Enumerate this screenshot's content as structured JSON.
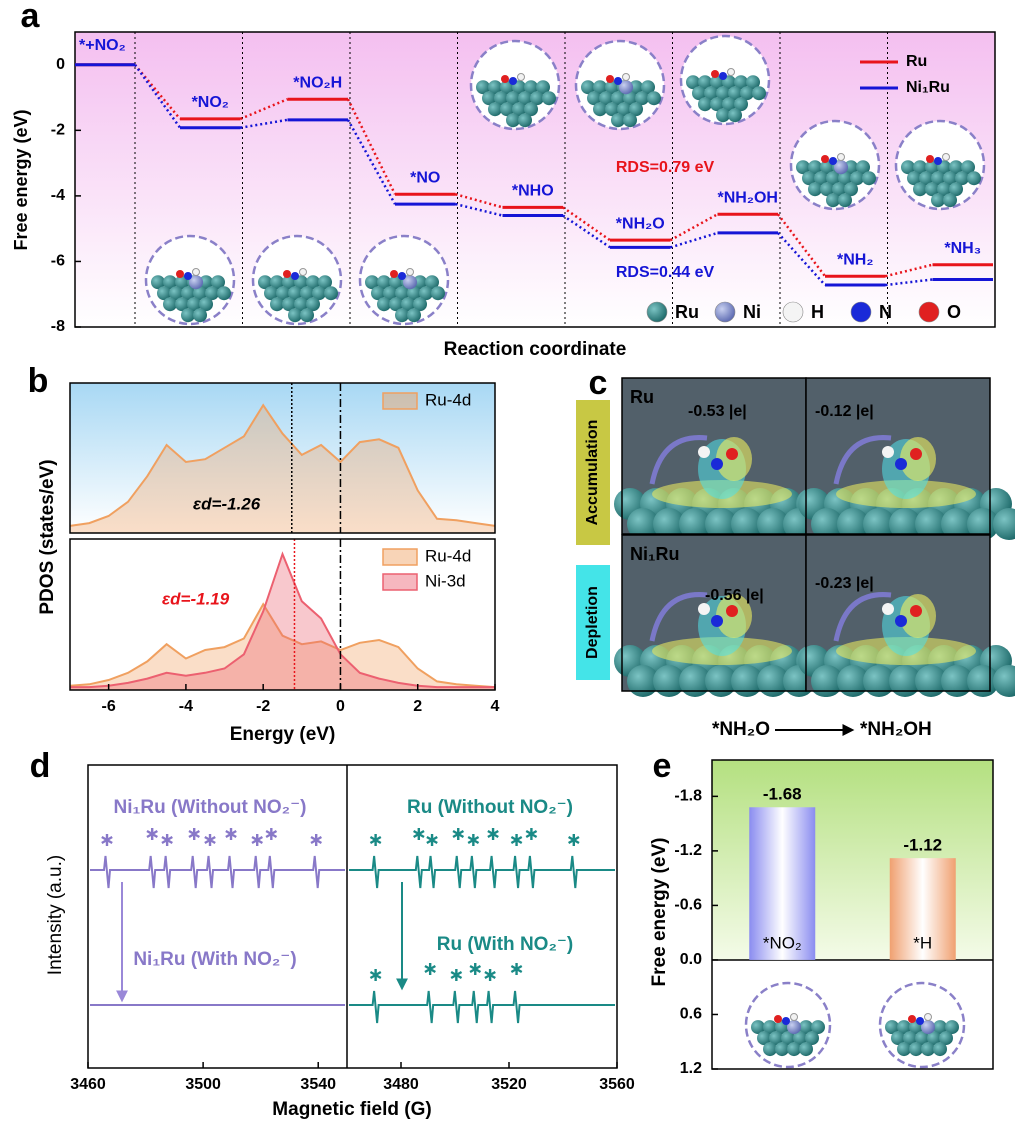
{
  "chart_data": [
    {
      "type": "energy-levels",
      "panel": "a",
      "xlabel": "Reaction coordinate",
      "ylabel": "Free energy (eV)",
      "ylim": [
        -8,
        1
      ],
      "yticks": [
        0,
        -2,
        -4,
        -6,
        -8
      ],
      "categories": [
        "*+NO₂",
        "*NO₂",
        "*NO₂H",
        "*NO",
        "*NHO",
        "*NH₂O",
        "*NH₂OH",
        "*NH₂",
        "*NH₃"
      ],
      "series": [
        {
          "name": "Ru",
          "color": "#e8141b",
          "values": [
            0,
            -1.65,
            -1.05,
            -3.95,
            -4.35,
            -5.35,
            -4.56,
            -6.45,
            -6.1
          ]
        },
        {
          "name": "Ni₁Ru",
          "color": "#1515d6",
          "values": [
            0,
            -1.92,
            -1.68,
            -4.25,
            -4.6,
            -5.57,
            -5.13,
            -6.72,
            -6.55
          ]
        }
      ],
      "annotations": [
        "RDS=0.79 eV",
        "RDS=0.44 eV"
      ],
      "atom_legend": [
        "Ru",
        "Ni",
        "H",
        "N",
        "O"
      ],
      "legend": "upper right"
    },
    {
      "type": "area",
      "panel": "b",
      "ylabel": "PDOS (states/eV)",
      "x": [
        -7,
        -6.5,
        -6,
        -5.5,
        -5,
        -4.5,
        -4,
        -3.5,
        -3,
        -2.5,
        -2,
        -1.5,
        -1,
        -0.5,
        0,
        0.5,
        1,
        1.5,
        2,
        2.5,
        3,
        3.5,
        4
      ],
      "xlim": [
        -7,
        4
      ],
      "ylim": [
        0,
        1
      ],
      "series": [
        {
          "name": "Ru-4d",
          "color": "#f0a060",
          "values": [
            0.05,
            0.07,
            0.12,
            0.22,
            0.4,
            0.62,
            0.5,
            0.52,
            0.6,
            0.68,
            0.9,
            0.7,
            0.55,
            0.62,
            0.5,
            0.64,
            0.66,
            0.6,
            0.3,
            0.1,
            0.09,
            0.07,
            0.05
          ]
        }
      ],
      "d_band_center": {
        "value": -1.26,
        "label": "εd=-1.26"
      },
      "fermi_level": 0,
      "legend": "upper right"
    },
    {
      "type": "area",
      "xlabel": "Energy (eV)",
      "x": [
        -7,
        -6.5,
        -6,
        -5.5,
        -5,
        -4.5,
        -4,
        -3.5,
        -3,
        -2.5,
        -2,
        -1.5,
        -1,
        -0.5,
        0,
        0.5,
        1,
        1.5,
        2,
        2.5,
        3,
        3.5,
        4
      ],
      "xlim": [
        -7,
        4
      ],
      "ylim": [
        0,
        1
      ],
      "xticks": [
        -6,
        -4,
        -2,
        0,
        2,
        4
      ],
      "series": [
        {
          "name": "Ru-4d",
          "color": "#f0a060",
          "values": [
            0.03,
            0.04,
            0.07,
            0.12,
            0.2,
            0.32,
            0.22,
            0.28,
            0.3,
            0.36,
            0.6,
            0.38,
            0.32,
            0.34,
            0.28,
            0.33,
            0.35,
            0.3,
            0.15,
            0.06,
            0.04,
            0.03,
            0.02
          ]
        },
        {
          "name": "Ni-3d",
          "color": "#ec6070",
          "values": [
            0.02,
            0.02,
            0.03,
            0.05,
            0.08,
            0.12,
            0.1,
            0.12,
            0.15,
            0.25,
            0.55,
            0.95,
            0.62,
            0.5,
            0.25,
            0.12,
            0.08,
            0.05,
            0.03,
            0.02,
            0.02,
            0.02,
            0.02
          ]
        }
      ],
      "d_band_center": {
        "value": -1.19,
        "label": "εd=-1.19"
      },
      "fermi_level": 0,
      "legend": "upper right"
    },
    {
      "type": "spectrum",
      "panel": "d",
      "xlabel": "Magnetic field (G)",
      "ylabel": "Intensity (a.u.)",
      "xlim": [
        3460,
        3550
      ],
      "xticks": [
        3460,
        3500,
        3540
      ],
      "series": [
        {
          "name": "Ni₁Ru (Without NO₂⁻)",
          "color": "#8878c8",
          "peaks": [
            3466.6,
            3482.3,
            3487.5,
            3496.9,
            3502.4,
            3509.7,
            3518.8,
            3523.7,
            3539.3
          ]
        },
        {
          "name": "Ni₁Ru (With NO₂⁻)",
          "color": "#8878c8",
          "peaks": []
        }
      ]
    },
    {
      "type": "spectrum",
      "xlim": [
        3460,
        3560
      ],
      "xticks": [
        3480,
        3520,
        3560
      ],
      "series": [
        {
          "name": "Ru (Without NO₂⁻)",
          "color": "#1a8a86",
          "peaks": [
            3470.6,
            3486.6,
            3491.5,
            3501.2,
            3506.8,
            3514.1,
            3522.8,
            3528.3,
            3544.0
          ]
        },
        {
          "name": "Ru (With NO₂⁻)",
          "color": "#1a8a86",
          "peaks": [
            3470.6,
            3490.8,
            3500.5,
            3507.5,
            3513.0,
            3522.8
          ]
        }
      ]
    },
    {
      "type": "bar",
      "panel": "e",
      "ylabel": "Free energy (eV)",
      "categories": [
        "*NO₂",
        "*H"
      ],
      "values": [
        -1.68,
        -1.12
      ],
      "colors": [
        "#8a8cf0",
        "#f0a070"
      ],
      "ylim": [
        -2.2,
        1.2
      ],
      "y_inverted": true,
      "yticks": [
        -1.8,
        -1.2,
        -0.6,
        {
          "value": 0,
          "label": "0.0"
        },
        0.6,
        1.2
      ]
    }
  ],
  "panel_c": {
    "label": "c",
    "row_labels": [
      "Accumulation",
      "Depletion"
    ],
    "rows": [
      {
        "name": "Ru",
        "charges": [
          "-0.53 |e|",
          "-0.12 |e|"
        ]
      },
      {
        "name": "Ni₁Ru",
        "charges": [
          "-0.56 |e|",
          "-0.23 |e|"
        ]
      }
    ],
    "reaction": [
      "*NH₂O",
      "*NH₂OH"
    ]
  }
}
